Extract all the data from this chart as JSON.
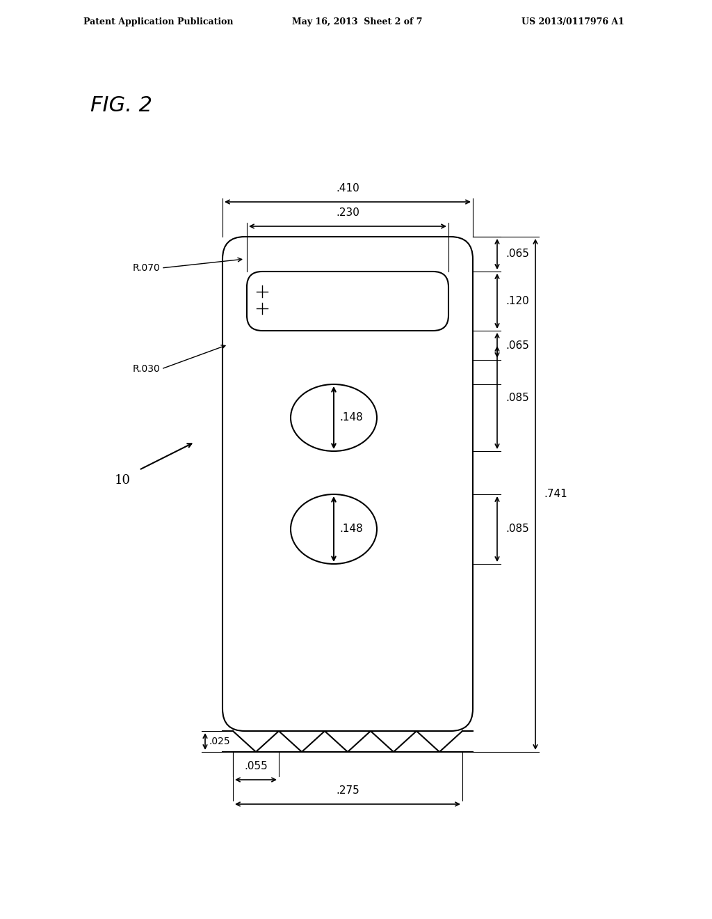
{
  "background_color": "#ffffff",
  "header_text": "Patent Application Publication",
  "header_date": "May 16, 2013  Sheet 2 of 7",
  "header_patent": "US 2013/0117976 A1",
  "fig_label": "FIG. 2",
  "part_number": "10",
  "dim_410": ".410",
  "dim_230": ".230",
  "dim_065a": ".065",
  "dim_120": ".120",
  "dim_065b": ".065",
  "dim_085a": ".085",
  "dim_085b": ".085",
  "dim_741": ".741",
  "dim_025": ".025",
  "dim_055": ".055",
  "dim_275": ".275",
  "dim_148a": ".148",
  "dim_148b": ".148",
  "R_070": "R.070",
  "R_030": "R.030",
  "line_color": "#000000",
  "text_color": "#000000",
  "lw": 1.5
}
